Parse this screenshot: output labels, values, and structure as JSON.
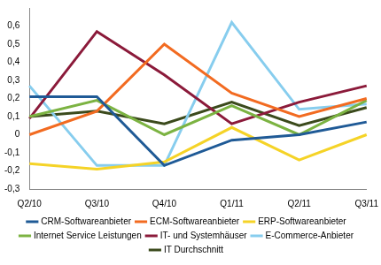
{
  "chart_data": {
    "type": "line",
    "categories": [
      "Q2/10",
      "Q3/10",
      "Q4/10",
      "Q1/11",
      "Q2/11",
      "Q3/11"
    ],
    "series": [
      {
        "name": "CRM-Softwareanbieter",
        "color": "#1f5a96",
        "values": [
          0.21,
          0.21,
          -0.17,
          -0.03,
          0.0,
          0.07
        ]
      },
      {
        "name": "ECM-Softwareanbieter",
        "color": "#f26b21",
        "values": [
          0.0,
          0.13,
          0.5,
          0.23,
          0.1,
          0.2
        ]
      },
      {
        "name": "ERP-Softwareanbieter",
        "color": "#f5d327",
        "values": [
          -0.16,
          -0.19,
          -0.15,
          0.04,
          -0.14,
          0.0
        ]
      },
      {
        "name": "Internet Service Leistungen",
        "color": "#7cb342",
        "values": [
          0.1,
          0.19,
          0.0,
          0.16,
          0.0,
          0.19
        ]
      },
      {
        "name": "IT- und Systemhäuser",
        "color": "#8b1a3a",
        "values": [
          0.09,
          0.57,
          0.33,
          0.06,
          0.18,
          0.27
        ]
      },
      {
        "name": "E-Commerce-Anbieter",
        "color": "#87cdee",
        "values": [
          0.27,
          -0.17,
          -0.17,
          0.62,
          0.14,
          0.17
        ]
      },
      {
        "name": "IT Durchschnitt",
        "color": "#3b4a1c",
        "values": [
          0.1,
          0.13,
          0.06,
          0.18,
          0.05,
          0.15
        ]
      }
    ],
    "ylim": [
      -0.3,
      0.7
    ],
    "yticks": [
      {
        "value": -0.3,
        "label": "-0,3"
      },
      {
        "value": -0.2,
        "label": "-0,2"
      },
      {
        "value": -0.1,
        "label": "-0,1"
      },
      0,
      {
        "value": 0.1,
        "label": "0,1"
      },
      {
        "value": 0.2,
        "label": "0,2"
      },
      {
        "value": 0.3,
        "label": "0,3"
      },
      {
        "value": 0.4,
        "label": "0,4"
      },
      {
        "value": 0.5,
        "label": "0,5"
      },
      {
        "value": 0.6,
        "label": "0,6"
      }
    ],
    "grid": false,
    "legend": "bottom"
  }
}
